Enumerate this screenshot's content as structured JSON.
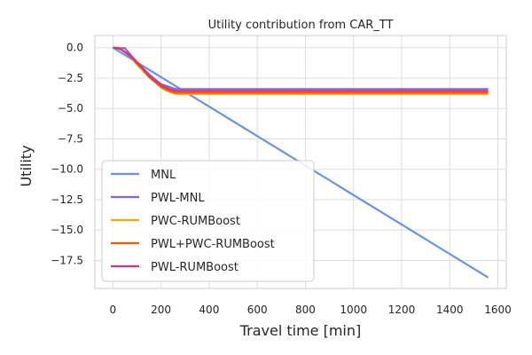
{
  "chart_data": {
    "type": "line",
    "title": "Utility contribution from CAR_TT",
    "xlabel": "Travel time [min]",
    "ylabel": "Utility",
    "xlim": [
      -75,
      1635
    ],
    "ylim": [
      -19.8,
      1.0
    ],
    "xticks": [
      0,
      200,
      400,
      600,
      800,
      1000,
      1200,
      1400,
      1600
    ],
    "yticks": [
      0.0,
      -2.5,
      -5.0,
      -7.5,
      -10.0,
      -12.5,
      -15.0,
      -17.5
    ],
    "ytick_labels": [
      "0.0",
      "−2.5",
      "−5.0",
      "−7.5",
      "−10.0",
      "−12.5",
      "−15.0",
      "−17.5"
    ],
    "grid": true,
    "legend_position": "lower-left",
    "series": [
      {
        "name": "MNL",
        "color": "#6495ED",
        "x": [
          0,
          1560
        ],
        "y": [
          0.0,
          -18.9
        ]
      },
      {
        "name": "PWL-MNL",
        "color": "#7B68EE",
        "x": [
          0,
          50,
          100,
          150,
          200,
          260,
          1560
        ],
        "y": [
          0.0,
          -0.05,
          -1.2,
          -2.2,
          -3.0,
          -3.4,
          -3.4
        ]
      },
      {
        "name": "PWC-RUMBoost",
        "color": "#FFA500",
        "x": [
          0,
          20,
          40,
          60,
          80,
          100,
          120,
          140,
          160,
          180,
          200,
          230,
          260,
          1560
        ],
        "y": [
          0.0,
          0.0,
          -0.2,
          -0.5,
          -0.9,
          -1.4,
          -1.8,
          -2.2,
          -2.6,
          -2.9,
          -3.3,
          -3.6,
          -3.8,
          -3.8
        ]
      },
      {
        "name": "PWL+PWC-RUMBoost",
        "color": "#FF5500",
        "x": [
          0,
          25,
          50,
          75,
          100,
          125,
          150,
          175,
          200,
          230,
          260,
          1560
        ],
        "y": [
          0.0,
          -0.05,
          -0.35,
          -0.75,
          -1.3,
          -1.8,
          -2.4,
          -2.8,
          -3.2,
          -3.5,
          -3.7,
          -3.7
        ]
      },
      {
        "name": "PWL-RUMBoost",
        "color": "#E0307A",
        "x": [
          0,
          30,
          60,
          90,
          120,
          150,
          180,
          210,
          240,
          260,
          1560
        ],
        "y": [
          0.0,
          -0.1,
          -0.5,
          -1.0,
          -1.6,
          -2.3,
          -2.8,
          -3.2,
          -3.45,
          -3.55,
          -3.55
        ]
      }
    ]
  }
}
